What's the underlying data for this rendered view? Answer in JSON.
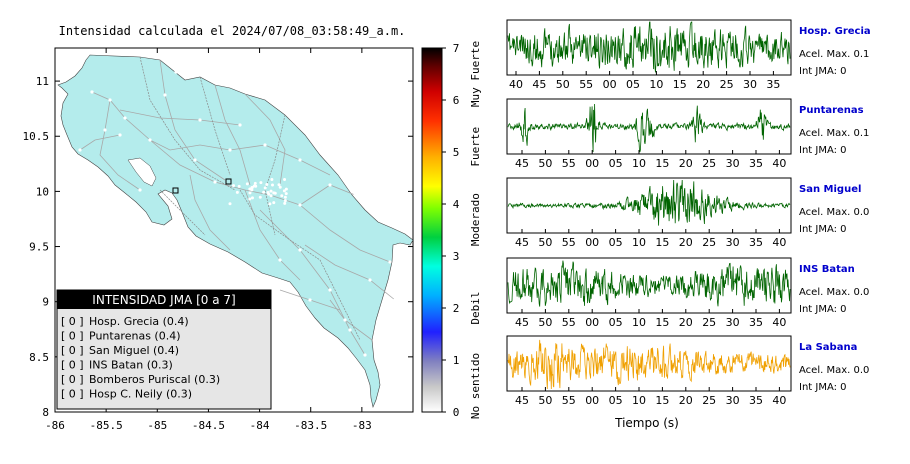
{
  "title": "Intensidad calculada el 2024/07/08_03:58:49_a.m.",
  "map": {
    "x_ticks": [
      "-86",
      "-85.5",
      "-85",
      "-84.5",
      "-84",
      "-83.5",
      "-83"
    ],
    "y_ticks": [
      "11",
      "10.5",
      "10",
      "9.5",
      "9",
      "8.5",
      "8"
    ],
    "x_values": [
      -86,
      -85.5,
      -85,
      -84.5,
      -84,
      -83.5,
      -83
    ],
    "y_values": [
      11,
      10.5,
      10,
      9.5,
      9,
      8.5,
      8
    ],
    "xlim": [
      -86,
      -82.5
    ],
    "ylim": [
      8,
      11.3
    ],
    "land_color": "#b4ecec"
  },
  "legend": {
    "header": "INTENSIDAD JMA [0 a 7]",
    "items": [
      {
        "bracket": "[ 0 ]",
        "label": "Hosp. Grecia (0.4)"
      },
      {
        "bracket": "[ 0 ]",
        "label": "Puntarenas (0.4)"
      },
      {
        "bracket": "[ 0 ]",
        "label": "San Miguel (0.4)"
      },
      {
        "bracket": "[ 0 ]",
        "label": "INS Batan (0.3)"
      },
      {
        "bracket": "[ 0 ]",
        "label": "Bomberos Puriscal (0.3)"
      },
      {
        "bracket": "[ 0 ]",
        "label": "Hosp C. Neily (0.3)"
      }
    ]
  },
  "colorbar": {
    "ticks": [
      "0",
      "1",
      "2",
      "3",
      "4",
      "5",
      "6",
      "7"
    ],
    "tick_values": [
      0,
      1,
      2,
      3,
      4,
      5,
      6,
      7
    ],
    "range": [
      0,
      7
    ],
    "labels": [
      "No sentido",
      "Debil",
      "Moderado",
      "Fuerte",
      "Muy Fuerte"
    ],
    "label_values": [
      0.5,
      2,
      3.7,
      5.1,
      6.5
    ]
  },
  "waveforms": {
    "xlabel": "Tiempo (s)",
    "panels": [
      {
        "station": "Hosp. Grecia",
        "acel": "Acel. Max. 0.1",
        "jma": "Int JMA: 0",
        "color": "#006400",
        "ticks": [
          "40",
          "45",
          "50",
          "55",
          "00",
          "05",
          "10",
          "15",
          "20",
          "25",
          "30",
          "35"
        ]
      },
      {
        "station": "Puntarenas",
        "acel": "Acel. Max. 0.1",
        "jma": "Int JMA: 0",
        "color": "#006400",
        "ticks": [
          "45",
          "50",
          "55",
          "00",
          "05",
          "10",
          "15",
          "20",
          "25",
          "30",
          "35",
          "40"
        ]
      },
      {
        "station": "San Miguel",
        "acel": "Acel. Max. 0.0",
        "jma": "Int JMA: 0",
        "color": "#006400",
        "ticks": [
          "45",
          "50",
          "55",
          "00",
          "05",
          "10",
          "15",
          "20",
          "25",
          "30",
          "35",
          "40"
        ]
      },
      {
        "station": "INS Batan",
        "acel": "Acel. Max. 0.0",
        "jma": "Int JMA: 0",
        "color": "#006400",
        "ticks": [
          "45",
          "50",
          "55",
          "00",
          "05",
          "10",
          "15",
          "20",
          "25",
          "30",
          "35",
          "40"
        ]
      },
      {
        "station": "La Sabana",
        "acel": "Acel. Max. 0.0",
        "jma": "Int JMA: 0",
        "color": "#f0a000",
        "ticks": [
          "45",
          "50",
          "55",
          "00",
          "05",
          "10",
          "15",
          "20",
          "25",
          "30",
          "35",
          "40"
        ]
      }
    ]
  }
}
